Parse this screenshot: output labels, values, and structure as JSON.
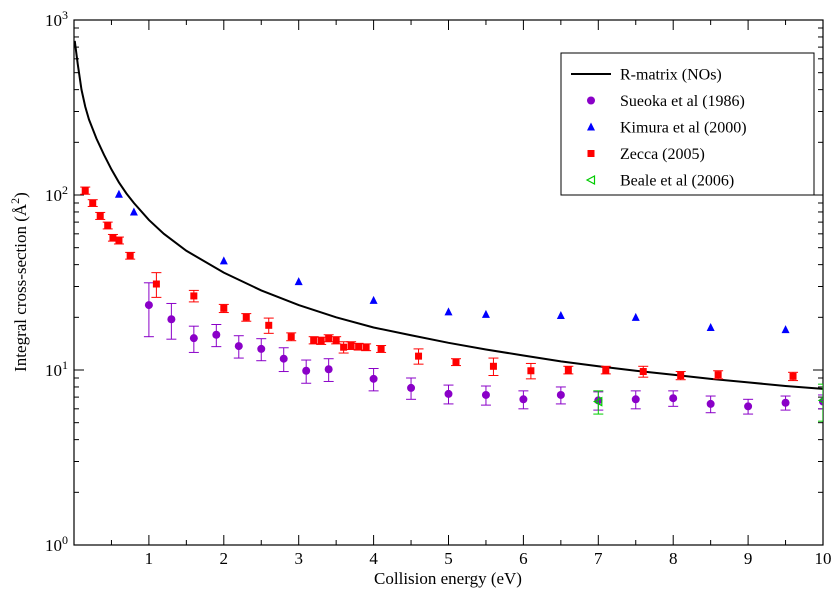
{
  "chart_data": {
    "type": "scatter",
    "title": "",
    "xlabel": "Collision energy (eV)",
    "ylabel": "Integral cross-section (Å²)",
    "ylabel_main": "Integral cross-section (",
    "ylabel_unit": "Å",
    "ylabel_exp": "2",
    "ylabel_close": ")",
    "xlim": [
      0,
      10
    ],
    "ylim": [
      1,
      1000
    ],
    "yscale": "log",
    "grid": false,
    "legend_position": "top-right",
    "x_ticks": [
      1,
      2,
      3,
      4,
      5,
      6,
      7,
      8,
      9,
      10
    ],
    "x_tick_labels": [
      "1",
      "2",
      "3",
      "4",
      "5",
      "6",
      "7",
      "8",
      "9",
      "10"
    ],
    "y_ticks": [
      1,
      10,
      100,
      1000
    ],
    "y_tick_labels": [
      {
        "base": "10",
        "exp": "0"
      },
      {
        "base": "10",
        "exp": "1"
      },
      {
        "base": "10",
        "exp": "2"
      },
      {
        "base": "10",
        "exp": "3"
      }
    ],
    "series": [
      {
        "name": "R-matrix (NOs)",
        "kind": "line",
        "color": "#000000",
        "x": [
          0.01,
          0.05,
          0.1,
          0.15,
          0.2,
          0.3,
          0.4,
          0.5,
          0.6,
          0.7,
          0.8,
          1.0,
          1.2,
          1.5,
          2.0,
          2.5,
          3.0,
          3.5,
          4.0,
          4.5,
          5.0,
          5.5,
          6.0,
          6.5,
          7.0,
          7.5,
          8.0,
          8.5,
          9.0,
          9.5,
          10.0
        ],
        "y": [
          760,
          560,
          400,
          320,
          270,
          210,
          170,
          140,
          118,
          102,
          90,
          72,
          60,
          48,
          36,
          28.5,
          23.5,
          20,
          17.5,
          15.8,
          14.3,
          13.1,
          12.1,
          11.2,
          10.5,
          9.9,
          9.4,
          8.9,
          8.5,
          8.1,
          7.8
        ]
      },
      {
        "name": "Sueoka et al (1986)",
        "kind": "circle",
        "color": "#8a00c8",
        "x": [
          1.0,
          1.3,
          1.6,
          1.9,
          2.2,
          2.5,
          2.8,
          3.1,
          3.4,
          4.0,
          4.5,
          5.0,
          5.5,
          6.0,
          6.5,
          7.0,
          7.5,
          8.0,
          8.5,
          9.0,
          9.5,
          10.0
        ],
        "y": [
          23.5,
          19.5,
          15.2,
          15.9,
          13.7,
          13.2,
          11.6,
          9.9,
          10.1,
          8.9,
          7.9,
          7.3,
          7.2,
          6.8,
          7.2,
          6.7,
          6.8,
          6.9,
          6.4,
          6.2,
          6.5,
          6.6
        ],
        "err": [
          8.0,
          4.5,
          2.6,
          2.3,
          2.0,
          1.9,
          1.8,
          1.5,
          1.5,
          1.3,
          1.1,
          0.9,
          0.9,
          0.8,
          0.8,
          0.8,
          0.8,
          0.7,
          0.7,
          0.6,
          0.6,
          0.6
        ]
      },
      {
        "name": "Kimura et al (2000)",
        "kind": "triangle-up",
        "color": "#0000ff",
        "x": [
          0.6,
          0.8,
          2.0,
          3.0,
          4.0,
          5.0,
          5.5,
          6.5,
          7.5,
          8.5,
          9.5
        ],
        "y": [
          101,
          80,
          42,
          32,
          25,
          21.5,
          20.8,
          20.5,
          20,
          17.5,
          17
        ]
      },
      {
        "name": "Zecca (2005)",
        "kind": "square",
        "color": "#ff0000",
        "x": [
          0.15,
          0.25,
          0.35,
          0.45,
          0.52,
          0.6,
          0.75,
          1.1,
          1.6,
          2.0,
          2.3,
          2.6,
          2.9,
          3.2,
          3.3,
          3.4,
          3.5,
          3.6,
          3.7,
          3.8,
          3.9,
          4.1,
          4.6,
          5.1,
          5.6,
          6.1,
          6.6,
          7.1,
          7.6,
          8.1,
          8.6,
          9.6
        ],
        "y": [
          106,
          90,
          76,
          67,
          57,
          55,
          45,
          31,
          26.5,
          22.5,
          20,
          18,
          15.5,
          14.8,
          14.7,
          15.2,
          14.8,
          13.5,
          13.8,
          13.6,
          13.5,
          13.2,
          12,
          11.1,
          10.5,
          9.9,
          10,
          10,
          9.8,
          9.3,
          9.4,
          9.2
        ],
        "err": [
          5.0,
          4.0,
          3.5,
          3.0,
          2.5,
          2.5,
          2.0,
          5.0,
          2.0,
          1.2,
          1.0,
          1.8,
          0.8,
          0.7,
          0.7,
          0.7,
          0.7,
          1.0,
          0.7,
          0.6,
          0.6,
          0.6,
          1.2,
          0.5,
          1.2,
          1.0,
          0.5,
          0.5,
          0.7,
          0.5,
          0.5,
          0.5
        ]
      },
      {
        "name": "Beale et al (2006)",
        "kind": "triangle-left",
        "color": "#00cc00",
        "x": [
          7.0,
          10.0
        ],
        "y": [
          6.6,
          6.7
        ],
        "err": [
          1.0,
          1.6
        ]
      }
    ]
  }
}
